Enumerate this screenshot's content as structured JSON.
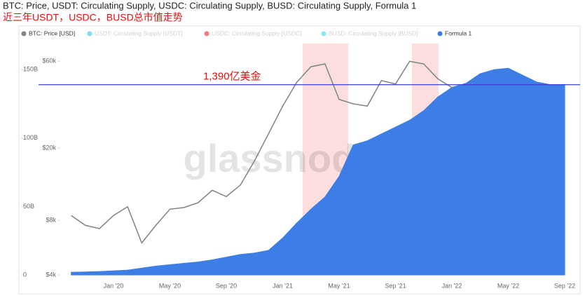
{
  "chart_data": {
    "type": "area-line",
    "title": "BTC: Price, USDT: Circulating Supply, USDC: Circulating Supply, BUSD: Circulating Supply, Formula 1",
    "subtitle": "近三年USDT，USDC，BUSD总市值走势",
    "watermark": "glassnode",
    "categories": [
      null,
      null,
      null,
      "Jan '20",
      null,
      null,
      null,
      "May '20",
      null,
      null,
      null,
      "Sep '20",
      null,
      null,
      null,
      "Jan '21",
      null,
      null,
      null,
      "May '21",
      null,
      null,
      null,
      "Sep '21",
      null,
      null,
      null,
      "Jan '22",
      null,
      null,
      null,
      "May '22",
      null,
      null,
      null,
      "Sep '22"
    ],
    "series": [
      {
        "name": "BTC: Price [USD]",
        "color": "#7d8580",
        "axis": "y2",
        "values": [
          8500,
          7500,
          7200,
          8500,
          9500,
          6000,
          7500,
          9200,
          9400,
          10000,
          11700,
          10800,
          12500,
          17000,
          24000,
          34000,
          46000,
          56000,
          58000,
          37000,
          35000,
          34000,
          47000,
          45000,
          60000,
          58000,
          48000,
          43000,
          null,
          null,
          null,
          null,
          null,
          null,
          null,
          null
        ]
      },
      {
        "name": "USDT: Circulating Supply [USDT]",
        "color": "#7fdcf0",
        "visible": false
      },
      {
        "name": "USDC: Circulating Supply [USDC]",
        "color": "#f07f7f",
        "visible": false
      },
      {
        "name": "BUSD: Circulating Supply [BUSD]",
        "color": "#8fe3ee",
        "visible": false
      },
      {
        "name": "Formula 1",
        "color": "#3d7de6",
        "values": [
          2,
          2.2,
          2.5,
          3,
          3.5,
          5,
          6.5,
          7.5,
          8.5,
          9.5,
          11,
          13,
          15,
          16,
          18,
          27,
          38,
          48,
          57,
          72,
          95,
          98,
          103,
          108,
          113,
          120,
          130,
          137,
          140,
          147,
          150,
          151,
          146,
          141,
          139,
          139
        ]
      }
    ],
    "ylim": [
      0,
      165
    ],
    "yticks": [
      0,
      {
        "value": 50,
        "label": "50B"
      },
      {
        "value": 100,
        "label": "100B"
      },
      {
        "value": 150,
        "label": "150B"
      }
    ],
    "y2lim": [
      4000,
      70000
    ],
    "y2scale": "log",
    "y2ticks": [
      {
        "value": 4000,
        "label": "$4k"
      },
      {
        "value": 8000,
        "label": "$8k"
      },
      {
        "value": 20000,
        "label": "$20k"
      },
      {
        "value": 60000,
        "label": "$60k"
      }
    ],
    "hline": {
      "value": 139,
      "label": "1,390亿美金",
      "color": "#3a3ad4"
    }
  }
}
